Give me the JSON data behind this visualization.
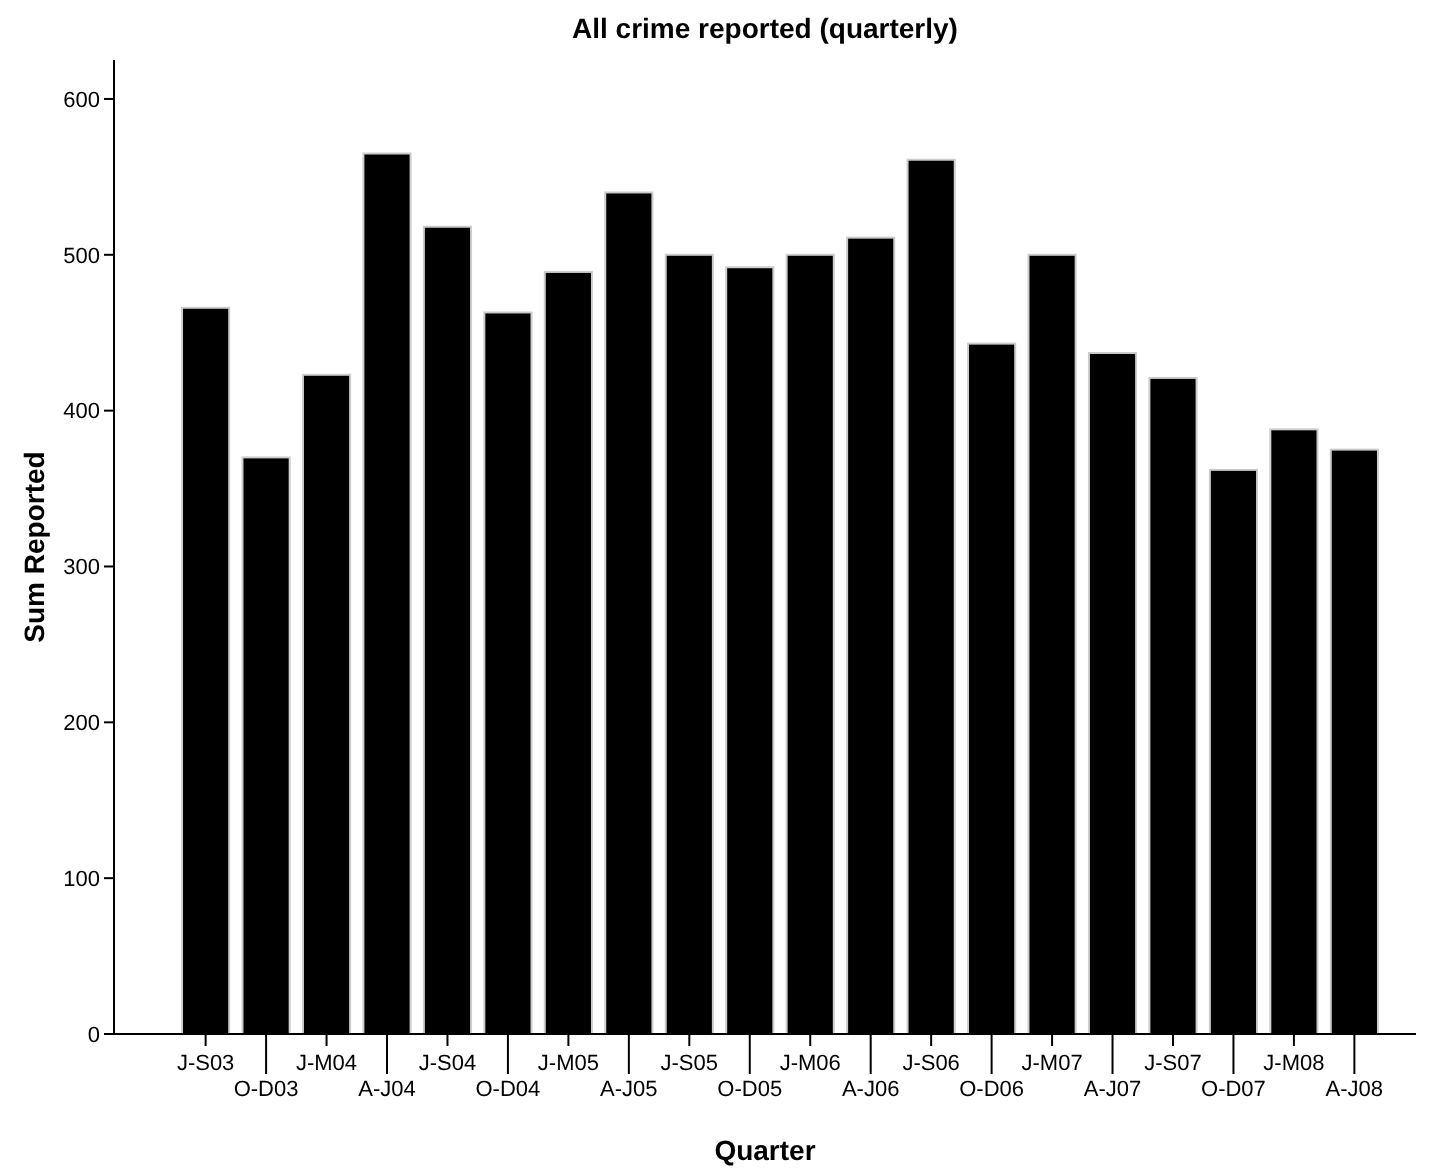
{
  "chart_data": {
    "type": "bar",
    "title": "All crime reported (quarterly)",
    "xlabel": "Quarter",
    "ylabel": "Sum Reported",
    "categories": [
      "J-S03",
      "O-D03",
      "J-M04",
      "A-J04",
      "J-S04",
      "O-D04",
      "J-M05",
      "A-J05",
      "J-S05",
      "O-D05",
      "J-M06",
      "A-J06",
      "J-S06",
      "O-D06",
      "J-M07",
      "A-J07",
      "J-S07",
      "O-D07",
      "J-M08",
      "A-J08"
    ],
    "values": [
      466,
      370,
      423,
      565,
      518,
      463,
      489,
      540,
      500,
      492,
      500,
      511,
      561,
      443,
      500,
      437,
      421,
      362,
      388,
      375
    ],
    "color": "#000000",
    "ylim": [
      0,
      625
    ],
    "yticks": [
      0,
      100,
      200,
      300,
      400,
      500,
      600
    ],
    "grid": false
  }
}
